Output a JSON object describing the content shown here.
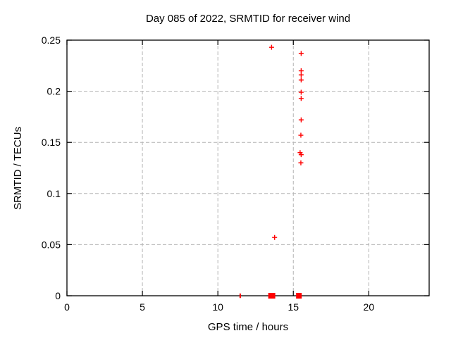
{
  "chart_data": {
    "type": "scatter",
    "title": "Day 085 of 2022, SRMTID for receiver wind",
    "xlabel": "GPS time / hours",
    "ylabel": "SRMTID / TECUs",
    "xlim": [
      0,
      24
    ],
    "ylim": [
      0,
      0.25
    ],
    "x_ticks": [
      0,
      5,
      10,
      15,
      20
    ],
    "x_tick_labels": [
      "0",
      "5",
      "10",
      "15",
      "20"
    ],
    "y_ticks": [
      0,
      0.05,
      0.1,
      0.15,
      0.2,
      0.25
    ],
    "y_tick_labels": [
      "0",
      "0.05",
      "0.1",
      "0.15",
      "0.2",
      "0.25"
    ],
    "grid": true,
    "grid_style": "dashed",
    "legend_position": "none",
    "colors": {
      "marker": "#ff0000",
      "grid": "#b4b4b4",
      "border": "#000000",
      "text": "#000000"
    },
    "series": [
      {
        "name": "srmtid-plus-points",
        "marker": "plus",
        "color": "#ff0000",
        "points": [
          [
            13.56,
            0.243
          ],
          [
            15.52,
            0.237
          ],
          [
            15.52,
            0.22
          ],
          [
            15.52,
            0.216
          ],
          [
            15.52,
            0.211
          ],
          [
            15.52,
            0.199
          ],
          [
            15.52,
            0.193
          ],
          [
            15.52,
            0.172
          ],
          [
            15.5,
            0.157
          ],
          [
            15.45,
            0.14
          ],
          [
            15.52,
            0.138
          ],
          [
            15.5,
            0.13
          ],
          [
            13.76,
            0.057
          ]
        ]
      },
      {
        "name": "baseline-clusters",
        "marker": "square",
        "color": "#ff0000",
        "points": [
          [
            11.48,
            0
          ],
          [
            13.57,
            0
          ],
          [
            15.37,
            0
          ]
        ],
        "marker_sizes": [
          [
            2,
            6.5
          ],
          [
            10,
            8
          ],
          [
            8,
            8
          ]
        ]
      }
    ]
  }
}
